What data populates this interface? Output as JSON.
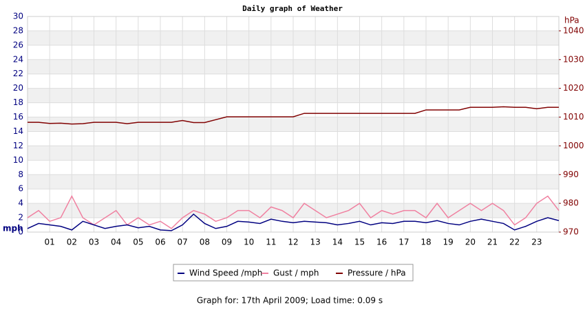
{
  "chart_data": {
    "type": "line",
    "title": "Daily graph of Weather",
    "ylabel": "mph",
    "y2label": "hPa",
    "footer": "Graph for: 17th April 2009; Load time: 0.09 s",
    "grid": true,
    "xlim": [
      0,
      24
    ],
    "xticks": [
      {
        "value": 1,
        "label": "01"
      },
      {
        "value": 2,
        "label": "02"
      },
      {
        "value": 3,
        "label": "03"
      },
      {
        "value": 4,
        "label": "04"
      },
      {
        "value": 5,
        "label": "05"
      },
      {
        "value": 6,
        "label": "06"
      },
      {
        "value": 7,
        "label": "07"
      },
      {
        "value": 8,
        "label": "08"
      },
      {
        "value": 9,
        "label": "09"
      },
      {
        "value": 10,
        "label": "10"
      },
      {
        "value": 11,
        "label": "11"
      },
      {
        "value": 12,
        "label": "12"
      },
      {
        "value": 13,
        "label": "13"
      },
      {
        "value": 14,
        "label": "14"
      },
      {
        "value": 15,
        "label": "15"
      },
      {
        "value": 16,
        "label": "16"
      },
      {
        "value": 17,
        "label": "17"
      },
      {
        "value": 18,
        "label": "18"
      },
      {
        "value": 19,
        "label": "19"
      },
      {
        "value": 20,
        "label": "20"
      },
      {
        "value": 21,
        "label": "21"
      },
      {
        "value": 22,
        "label": "22"
      },
      {
        "value": 23,
        "label": "23"
      }
    ],
    "ylim": [
      0,
      30
    ],
    "yticks": [
      0,
      2,
      4,
      6,
      8,
      10,
      12,
      14,
      16,
      18,
      20,
      22,
      24,
      26,
      28,
      30
    ],
    "y2lim": [
      970,
      1045
    ],
    "y2ticks": [
      970,
      980,
      990,
      1000,
      1010,
      1020,
      1030,
      1040
    ],
    "x": [
      0,
      0.5,
      1,
      1.5,
      2,
      2.5,
      3,
      3.5,
      4,
      4.5,
      5,
      5.5,
      6,
      6.5,
      7,
      7.5,
      8,
      8.5,
      9,
      9.5,
      10,
      10.5,
      11,
      11.5,
      12,
      12.5,
      13,
      13.5,
      14,
      14.5,
      15,
      15.5,
      16,
      16.5,
      17,
      17.5,
      18,
      18.5,
      19,
      19.5,
      20,
      20.5,
      21,
      21.5,
      22,
      22.5,
      23,
      23.5,
      24
    ],
    "series": [
      {
        "name": "Gust / mph",
        "color": "#f080a0",
        "axis": "y",
        "values": [
          2,
          3,
          1.5,
          2,
          5,
          2,
          1,
          2,
          3,
          1,
          2,
          1,
          1.5,
          0.5,
          2,
          3,
          2.5,
          1.5,
          2,
          3,
          3,
          2,
          3.5,
          3,
          2,
          4,
          3,
          2,
          2.5,
          3,
          4,
          2,
          3,
          2.5,
          3,
          3,
          2,
          4,
          2,
          3,
          4,
          3,
          4,
          3,
          1,
          2,
          4,
          5,
          3
        ]
      },
      {
        "name": "Wind Speed /mph",
        "color": "#000080",
        "axis": "y",
        "values": [
          0.5,
          1.2,
          1,
          0.8,
          0.3,
          1.5,
          1,
          0.5,
          0.8,
          1,
          0.6,
          0.8,
          0.3,
          0.2,
          1,
          2.5,
          1.2,
          0.5,
          0.8,
          1.5,
          1.4,
          1.2,
          1.8,
          1.5,
          1.3,
          1.5,
          1.4,
          1.3,
          1,
          1.2,
          1.5,
          1,
          1.3,
          1.2,
          1.5,
          1.5,
          1.3,
          1.6,
          1.2,
          1,
          1.5,
          1.8,
          1.5,
          1.2,
          0.3,
          0.8,
          1.5,
          2,
          1.6
        ]
      },
      {
        "name": "Pressure / hPa",
        "color": "#800000",
        "axis": "y2",
        "values": [
          1008.2,
          1008.2,
          1007.8,
          1007.9,
          1007.6,
          1007.7,
          1008.2,
          1008.2,
          1008.2,
          1007.7,
          1008.2,
          1008.2,
          1008.2,
          1008.2,
          1008.8,
          1008.1,
          1008.1,
          1009.1,
          1010.1,
          1010.1,
          1010.1,
          1010.1,
          1010.1,
          1010.1,
          1010.1,
          1011.3,
          1011.3,
          1011.3,
          1011.3,
          1011.3,
          1011.3,
          1011.3,
          1011.3,
          1011.3,
          1011.3,
          1011.3,
          1012.5,
          1012.5,
          1012.5,
          1012.5,
          1013.4,
          1013.4,
          1013.4,
          1013.6,
          1013.4,
          1013.4,
          1012.9,
          1013.4,
          1013.4
        ]
      }
    ]
  }
}
